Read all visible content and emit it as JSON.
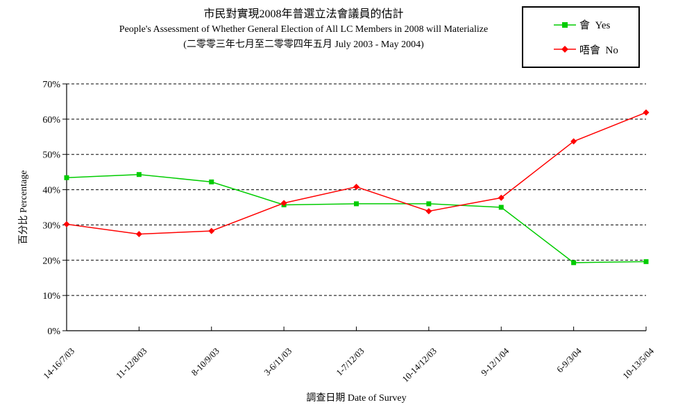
{
  "header": {
    "title_zh": "市民對實現2008年普選立法會議員的估計",
    "title_en": "People's Assessment of Whether General Election of All LC Members in 2008 will Materialize",
    "subtitle": "(二零零三年七月至二零零四年五月 July 2003 - May 2004)"
  },
  "legend": {
    "yes_label": "會  Yes",
    "no_label": "唔會  No"
  },
  "chart_data": {
    "type": "line",
    "title": "市民對實現2008年普選立法會議員的估計",
    "subtitle": "People's Assessment of Whether General Election of All LC Members in 2008 will Materialize (二零零三年七月至二零零四年五月 July 2003 - May 2004)",
    "xlabel": "調查日期 Date of Survey",
    "ylabel": "百分比 Percentage",
    "categories": [
      "14-16/7/03",
      "11-12/8/03",
      "8-10/9/03",
      "3-6/11/03",
      "1-7/12/03",
      "10-14/12/03",
      "9-12/1/04",
      "6-9/3/04",
      "10-13/5/04"
    ],
    "series": [
      {
        "name": "會  Yes",
        "marker": "square",
        "color": "#00CC00",
        "values": [
          43.4,
          44.3,
          42.2,
          35.7,
          36.0,
          36.0,
          35.0,
          19.3,
          19.6
        ]
      },
      {
        "name": "唔會  No",
        "marker": "diamond",
        "color": "#FF0000",
        "values": [
          30.2,
          27.4,
          28.3,
          36.2,
          40.8,
          33.9,
          37.7,
          53.7,
          61.9
        ]
      }
    ],
    "ylim": [
      0,
      70
    ],
    "ytick_step": 10,
    "ytick_suffix": "%",
    "grid": "horizontal-dashed",
    "legend_position": "top-right"
  }
}
